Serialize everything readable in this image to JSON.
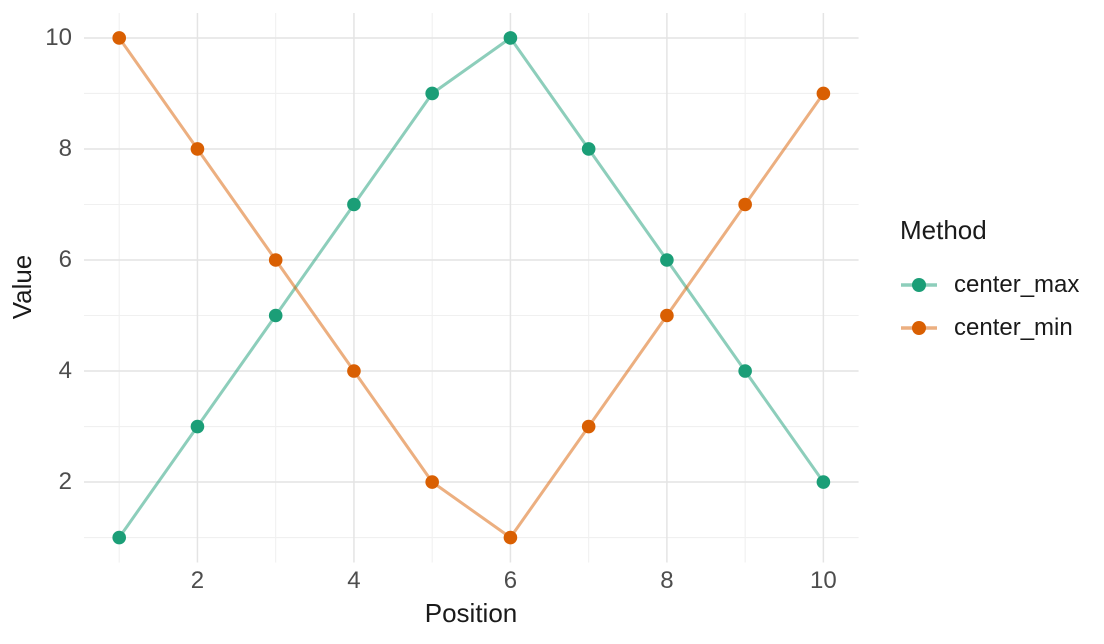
{
  "chart_data": {
    "type": "line",
    "title": "",
    "xlabel": "Position",
    "ylabel": "Value",
    "x": [
      1,
      2,
      3,
      4,
      5,
      6,
      7,
      8,
      9,
      10
    ],
    "series": [
      {
        "name": "center_max",
        "values": [
          1,
          3,
          5,
          7,
          9,
          10,
          8,
          6,
          4,
          2
        ],
        "point_color": "#1b9e77",
        "line_color": "rgba(27,158,119,0.5)"
      },
      {
        "name": "center_min",
        "values": [
          10,
          8,
          6,
          4,
          2,
          1,
          3,
          5,
          7,
          9
        ],
        "point_color": "#d95f02",
        "line_color": "rgba(217,95,2,0.5)"
      }
    ],
    "x_ticks": [
      "2",
      "4",
      "6",
      "8",
      "10"
    ],
    "x_tick_values": [
      2,
      4,
      6,
      8,
      10
    ],
    "y_ticks": [
      "2",
      "4",
      "6",
      "8",
      "10"
    ],
    "y_tick_values": [
      2,
      4,
      6,
      8,
      10
    ],
    "minor_x": [
      1,
      3,
      5,
      7,
      9
    ],
    "minor_y": [
      1,
      3,
      5,
      7,
      9
    ],
    "xlim": [
      0.55,
      10.45
    ],
    "ylim": [
      0.55,
      10.45
    ],
    "grid": "major+minor",
    "legend": {
      "title": "Method",
      "position": "right",
      "entries": [
        "center_max",
        "center_min"
      ]
    }
  }
}
